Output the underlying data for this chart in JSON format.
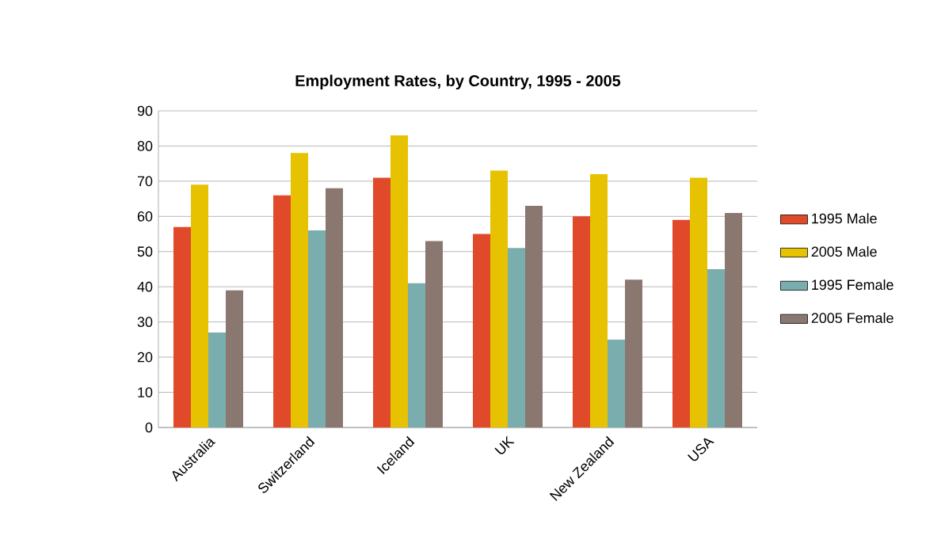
{
  "chart_data": {
    "type": "bar",
    "title": "Employment Rates, by Country, 1995  - 2005",
    "categories": [
      "Australia",
      "Switzerland",
      "Iceland",
      "UK",
      "New Zealand",
      "USA"
    ],
    "series": [
      {
        "name": "1995 Male",
        "color": "#e04a2a",
        "values": [
          57,
          66,
          71,
          55,
          60,
          59
        ]
      },
      {
        "name": "2005 Male",
        "color": "#e6c200",
        "values": [
          69,
          78,
          83,
          73,
          72,
          71
        ]
      },
      {
        "name": "1995 Female",
        "color": "#7aaeae",
        "values": [
          27,
          56,
          41,
          51,
          25,
          45
        ]
      },
      {
        "name": "2005 Female",
        "color": "#8a7870",
        "values": [
          39,
          68,
          53,
          63,
          42,
          61
        ]
      }
    ],
    "ylim": [
      0,
      90
    ],
    "yticks": [
      0,
      10,
      20,
      30,
      40,
      50,
      60,
      70,
      80,
      90
    ],
    "grid": "y",
    "legend": "right"
  }
}
